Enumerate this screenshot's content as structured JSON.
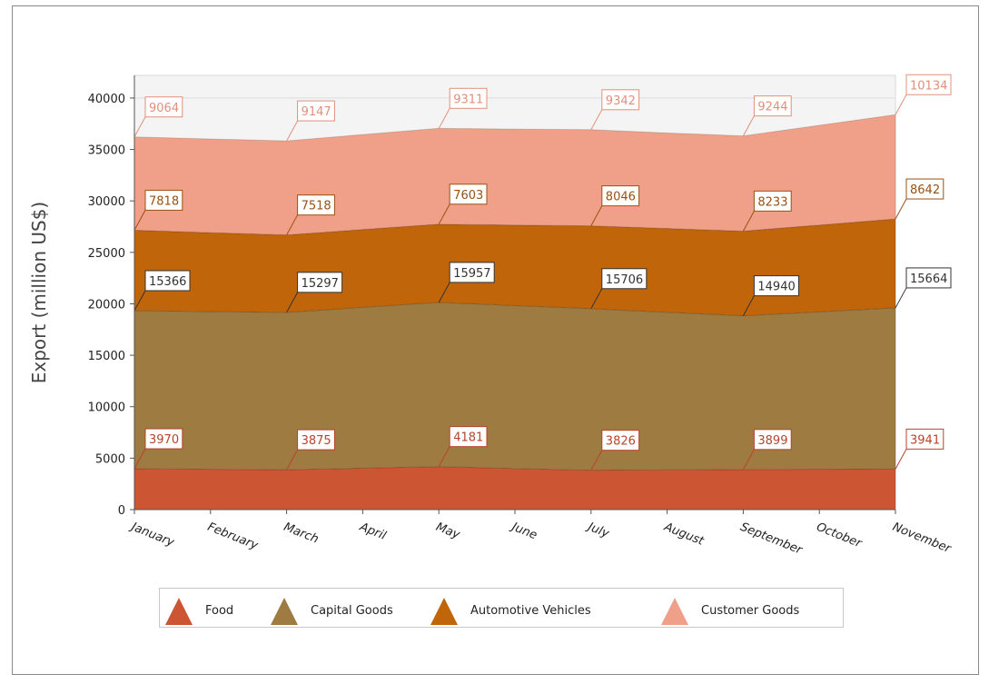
{
  "chart_data": {
    "type": "stacked_area",
    "y_label": "Export (million US$)",
    "categories": [
      "January",
      "February",
      "March",
      "April",
      "May",
      "June",
      "July",
      "August",
      "September",
      "October",
      "November"
    ],
    "series": [
      {
        "name": "Food",
        "color": "#cc5533",
        "label_color": "#b8432a",
        "values": [
          3970,
          3920,
          3875,
          4030,
          4181,
          4000,
          3826,
          3860,
          3899,
          3920,
          3941
        ],
        "value_labels": [
          "3970",
          null,
          "3875",
          null,
          "4181",
          null,
          "3826",
          null,
          "3899",
          null,
          "3941"
        ]
      },
      {
        "name": "Capital Goods",
        "color": "#9e7b40",
        "label_color": "#333333",
        "values": [
          15366,
          15330,
          15297,
          15630,
          15957,
          15830,
          15706,
          15320,
          14940,
          15300,
          15664
        ],
        "value_labels": [
          "15366",
          null,
          "15297",
          null,
          "15957",
          null,
          "15706",
          null,
          "14940",
          null,
          "15664"
        ]
      },
      {
        "name": "Automotive Vehicles",
        "color": "#c0650a",
        "label_color": "#9a5012",
        "values": [
          7818,
          7670,
          7518,
          7560,
          7603,
          7820,
          8046,
          8140,
          8233,
          8440,
          8642
        ],
        "value_labels": [
          "7818",
          null,
          "7518",
          null,
          "7603",
          null,
          "8046",
          null,
          "8233",
          null,
          "8642"
        ]
      },
      {
        "name": "Customer Goods",
        "color": "#f0a088",
        "label_color": "#e0907a",
        "values": [
          9064,
          9100,
          9147,
          9230,
          9311,
          9330,
          9342,
          9290,
          9244,
          9690,
          10134
        ],
        "value_labels": [
          "9064",
          null,
          "9147",
          null,
          "9311",
          null,
          "9342",
          null,
          "9244",
          null,
          "10134"
        ]
      }
    ],
    "ylim": [
      0,
      42200
    ],
    "yticks": [
      0,
      5000,
      10000,
      15000,
      20000,
      25000,
      30000,
      35000,
      40000
    ]
  }
}
